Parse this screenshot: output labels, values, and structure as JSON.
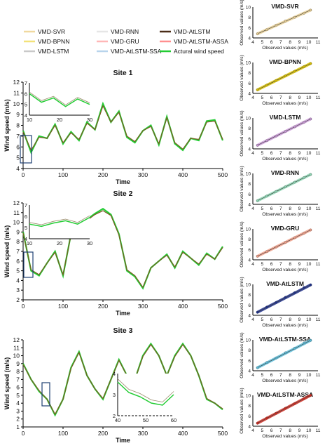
{
  "figure": {
    "legend": [
      {
        "label": "VMD-SVR",
        "color": "#f0d9a0"
      },
      {
        "label": "VMD-RNN",
        "color": "#e6e6e6"
      },
      {
        "label": "VMD-AtLSTM",
        "color": "#4a2c17"
      },
      {
        "label": "VMD-BPNN",
        "color": "#f3e27a"
      },
      {
        "label": "VMD-GRU",
        "color": "#ffb7b7"
      },
      {
        "label": "VMD-AtLSTM-ASSA",
        "color": "#ff8f8f"
      },
      {
        "label": "VMD-LSTM",
        "color": "#c9c9c9"
      },
      {
        "label": "VMD-AtLSTM-SSA",
        "color": "#b8d4ec"
      },
      {
        "label": "Actural wind speed",
        "color": "#22cc33"
      }
    ]
  },
  "chart_data": [
    {
      "type": "line",
      "title": "Site 1",
      "xlabel": "Time",
      "ylabel": "Wind speed (m/s)",
      "xlim": [
        0,
        500
      ],
      "ylim": [
        4,
        12
      ],
      "xticks": [
        "0",
        "100",
        "200",
        "300",
        "400",
        "500"
      ],
      "yticks": [
        "4",
        "5",
        "6",
        "7",
        "8",
        "9",
        "10",
        "11",
        "12"
      ],
      "x": [
        0,
        20,
        40,
        60,
        80,
        100,
        120,
        140,
        160,
        180,
        200,
        220,
        240,
        260,
        280,
        300,
        320,
        340,
        360,
        380,
        400,
        420,
        440,
        460,
        480,
        500
      ],
      "series": [
        {
          "name": "Actural wind speed",
          "values": [
            7.5,
            5.5,
            7.0,
            6.8,
            8.1,
            6.3,
            7.4,
            6.6,
            8.3,
            7.6,
            10.0,
            8.3,
            9.3,
            6.9,
            6.4,
            7.5,
            8.0,
            6.2,
            8.8,
            6.3,
            5.7,
            6.8,
            6.6,
            8.4,
            8.5,
            6.6
          ]
        },
        {
          "name": "VMD-AtLSTM",
          "values": [
            7.4,
            5.7,
            6.9,
            6.8,
            8.0,
            6.4,
            7.3,
            6.7,
            8.2,
            7.6,
            9.8,
            8.3,
            9.2,
            7.0,
            6.5,
            7.5,
            7.9,
            6.3,
            8.7,
            6.4,
            5.8,
            6.8,
            6.7,
            8.3,
            8.4,
            6.7
          ]
        }
      ],
      "inset": {
        "xlim": [
          10,
          30
        ],
        "ylim": [
          4,
          7
        ],
        "xticks": [
          "10",
          "20",
          "30"
        ],
        "yticks": [
          "4",
          "5",
          "6",
          "7"
        ],
        "x": [
          10,
          14,
          18,
          22,
          26,
          30
        ],
        "values": [
          6.0,
          5.2,
          5.6,
          4.8,
          5.5,
          5.0
        ]
      }
    },
    {
      "type": "line",
      "title": "Site 2",
      "xlabel": "Time",
      "ylabel": "Wind speed (m/s)",
      "xlim": [
        0,
        500
      ],
      "ylim": [
        2,
        12
      ],
      "xticks": [
        "0",
        "100",
        "200",
        "300",
        "400",
        "500"
      ],
      "yticks": [
        "2",
        "3",
        "4",
        "5",
        "6",
        "7",
        "8",
        "9",
        "10",
        "11",
        "12"
      ],
      "x": [
        0,
        20,
        40,
        60,
        80,
        100,
        120,
        140,
        160,
        180,
        200,
        220,
        240,
        260,
        280,
        300,
        320,
        340,
        360,
        380,
        400,
        420,
        440,
        460,
        480,
        500
      ],
      "series": [
        {
          "name": "Actural wind speed",
          "values": [
            9.0,
            5.0,
            4.5,
            5.8,
            7.0,
            4.5,
            8.8,
            10.2,
            10.3,
            10.9,
            11.4,
            10.8,
            8.8,
            5.0,
            4.4,
            3.2,
            5.3,
            6.0,
            6.7,
            5.3,
            7.0,
            6.3,
            5.6,
            6.8,
            6.2,
            7.5
          ]
        },
        {
          "name": "VMD-AtLSTM",
          "values": [
            8.9,
            5.1,
            4.6,
            5.8,
            6.9,
            4.6,
            8.7,
            10.1,
            10.2,
            10.8,
            11.2,
            10.7,
            8.7,
            5.1,
            4.5,
            3.3,
            5.3,
            6.0,
            6.6,
            5.4,
            6.9,
            6.3,
            5.7,
            6.7,
            6.2,
            7.4
          ]
        }
      ],
      "inset": {
        "xlim": [
          10,
          30
        ],
        "ylim": [
          4,
          7
        ],
        "xticks": [
          "10",
          "20",
          "30"
        ],
        "yticks": [
          "4",
          "5",
          "6",
          "7"
        ],
        "x": [
          10,
          14,
          18,
          22,
          26,
          30
        ],
        "values": [
          5.3,
          5.1,
          5.4,
          5.6,
          5.3,
          5.9
        ]
      }
    },
    {
      "type": "line",
      "title": "Site 3",
      "xlabel": "Time",
      "ylabel": "Wind speed (m/s)",
      "xlim": [
        0,
        500
      ],
      "ylim": [
        1,
        12
      ],
      "xticks": [
        "0",
        "100",
        "200",
        "300",
        "400",
        "500"
      ],
      "yticks": [
        "1",
        "2",
        "3",
        "4",
        "5",
        "6",
        "7",
        "8",
        "9",
        "10",
        "11",
        "12"
      ],
      "x": [
        0,
        20,
        40,
        60,
        80,
        100,
        120,
        140,
        160,
        180,
        200,
        220,
        240,
        260,
        280,
        300,
        320,
        340,
        360,
        380,
        400,
        420,
        440,
        460,
        480,
        500
      ],
      "series": [
        {
          "name": "Actural wind speed",
          "values": [
            9.0,
            7.0,
            5.5,
            4.5,
            2.5,
            4.5,
            8.5,
            10.5,
            7.5,
            5.8,
            4.5,
            7.0,
            9.5,
            7.5,
            7.0,
            10.0,
            11.5,
            10.0,
            7.5,
            10.0,
            11.5,
            10.0,
            7.5,
            4.5,
            4.0,
            3.2
          ]
        },
        {
          "name": "VMD-AtLSTM",
          "values": [
            8.9,
            7.0,
            5.6,
            4.5,
            2.6,
            4.5,
            8.4,
            10.4,
            7.5,
            5.8,
            4.6,
            7.0,
            9.4,
            7.5,
            7.0,
            9.9,
            11.4,
            10.0,
            7.5,
            9.9,
            11.4,
            10.0,
            7.5,
            4.6,
            4.0,
            3.3
          ]
        }
      ],
      "inset": {
        "xlim": [
          40,
          60
        ],
        "ylim": [
          2,
          4
        ],
        "xticks": [
          "40",
          "50",
          "60"
        ],
        "yticks": [
          "2",
          "3",
          "4"
        ],
        "x": [
          40,
          44,
          48,
          52,
          56,
          60
        ],
        "values": [
          3.6,
          3.1,
          2.9,
          2.6,
          2.5,
          3.0
        ]
      }
    },
    {
      "type": "scatter",
      "title": "VMD-SVR",
      "xlabel": "Observed values (m/s)",
      "ylabel": "Observed values (m/s)",
      "xlim": [
        4,
        11
      ],
      "ylim": [
        4,
        10
      ],
      "xticks": [
        "4",
        "5",
        "6",
        "7",
        "8",
        "9",
        "10",
        "11"
      ],
      "yticks": [
        "4",
        "6",
        "8",
        "10"
      ],
      "color": "#e8cf95",
      "x": [
        4.5,
        5.5,
        6.5,
        7.5,
        8.5,
        9.5,
        10.2
      ],
      "y": [
        4.8,
        5.6,
        6.5,
        7.3,
        8.0,
        8.8,
        9.4
      ]
    },
    {
      "type": "scatter",
      "title": "VMD-BPNN",
      "xlabel": "Observed values (m/s)",
      "ylabel": "Observed values (m/s)",
      "xlim": [
        4,
        11
      ],
      "ylim": [
        4,
        10
      ],
      "xticks": [
        "4",
        "5",
        "6",
        "7",
        "8",
        "9",
        "10",
        "11"
      ],
      "yticks": [
        "4",
        "6",
        "8",
        "10"
      ],
      "color": "#d9c000",
      "x": [
        4.5,
        5.5,
        6.5,
        7.5,
        8.5,
        9.5,
        10.2
      ],
      "y": [
        4.7,
        5.6,
        6.5,
        7.4,
        8.3,
        9.2,
        9.8
      ]
    },
    {
      "type": "scatter",
      "title": "VMD-LSTM",
      "xlabel": "Observed values (m/s)",
      "ylabel": "Observed values (m/s)",
      "xlim": [
        4,
        11
      ],
      "ylim": [
        4,
        10
      ],
      "xticks": [
        "4",
        "5",
        "6",
        "7",
        "8",
        "9",
        "10",
        "11"
      ],
      "yticks": [
        "4",
        "6",
        "8",
        "10"
      ],
      "color": "#c99ad6",
      "x": [
        4.5,
        5.5,
        6.5,
        7.5,
        8.5,
        9.5,
        10.2
      ],
      "y": [
        4.7,
        5.6,
        6.5,
        7.4,
        8.3,
        9.2,
        9.8
      ]
    },
    {
      "type": "scatter",
      "title": "VMD-RNN",
      "xlabel": "Observed values (m/s)",
      "ylabel": "Observed values (m/s)",
      "xlim": [
        4,
        11
      ],
      "ylim": [
        4,
        10
      ],
      "xticks": [
        "4",
        "5",
        "6",
        "7",
        "8",
        "9",
        "10",
        "11"
      ],
      "yticks": [
        "4",
        "6",
        "8",
        "10"
      ],
      "color": "#8fd6b5",
      "x": [
        4.5,
        5.5,
        6.5,
        7.5,
        8.5,
        9.5,
        10.2
      ],
      "y": [
        4.7,
        5.6,
        6.5,
        7.4,
        8.3,
        9.2,
        9.8
      ]
    },
    {
      "type": "scatter",
      "title": "VMD-GRU",
      "xlabel": "Observed values (m/s)",
      "ylabel": "Observed values (m/s)",
      "xlim": [
        4,
        11
      ],
      "ylim": [
        4,
        10
      ],
      "xticks": [
        "4",
        "5",
        "6",
        "7",
        "8",
        "9",
        "10",
        "11"
      ],
      "yticks": [
        "4",
        "6",
        "8",
        "10"
      ],
      "color": "#f0a08a",
      "x": [
        4.5,
        5.5,
        6.5,
        7.5,
        8.5,
        9.5,
        10.2
      ],
      "y": [
        4.7,
        5.6,
        6.5,
        7.4,
        8.3,
        9.2,
        9.8
      ]
    },
    {
      "type": "scatter",
      "title": "VMD-AtLSTM",
      "xlabel": "Observed values (m/s)",
      "ylabel": "Observed values (m/s)",
      "xlim": [
        4,
        11
      ],
      "ylim": [
        4,
        10
      ],
      "xticks": [
        "4",
        "5",
        "6",
        "7",
        "8",
        "9",
        "10",
        "11"
      ],
      "yticks": [
        "4",
        "6",
        "8",
        "10"
      ],
      "color": "#1d2f8a",
      "x": [
        4.5,
        5.5,
        6.5,
        7.5,
        8.5,
        9.5,
        10.2
      ],
      "y": [
        4.6,
        5.6,
        6.5,
        7.5,
        8.4,
        9.4,
        9.9
      ]
    },
    {
      "type": "scatter",
      "title": "VMD-AtLSTM-SSA",
      "xlabel": "Observed values (m/s)",
      "ylabel": "Observed values (m/s)",
      "xlim": [
        4,
        11
      ],
      "ylim": [
        4,
        10
      ],
      "xticks": [
        "4",
        "5",
        "6",
        "7",
        "8",
        "9",
        "10",
        "11"
      ],
      "yticks": [
        "4",
        "6",
        "8",
        "10"
      ],
      "color": "#5bbcd8",
      "x": [
        4.5,
        5.5,
        6.5,
        7.5,
        8.5,
        9.5,
        10.2
      ],
      "y": [
        4.6,
        5.6,
        6.5,
        7.5,
        8.4,
        9.4,
        9.9
      ]
    },
    {
      "type": "scatter",
      "title": "VMD-AtLSTM-ASSA",
      "xlabel": "Observed values (m/s)",
      "ylabel": "Observed values (m/s)",
      "xlim": [
        4,
        11
      ],
      "ylim": [
        4,
        10
      ],
      "xticks": [
        "4",
        "5",
        "6",
        "7",
        "8",
        "9",
        "10",
        "11"
      ],
      "yticks": [
        "4",
        "6",
        "8",
        "10"
      ],
      "color": "#cc2a1f",
      "x": [
        4.5,
        5.5,
        6.5,
        7.5,
        8.5,
        9.5,
        10.2
      ],
      "y": [
        4.6,
        5.6,
        6.5,
        7.5,
        8.4,
        9.4,
        10.0
      ]
    }
  ]
}
